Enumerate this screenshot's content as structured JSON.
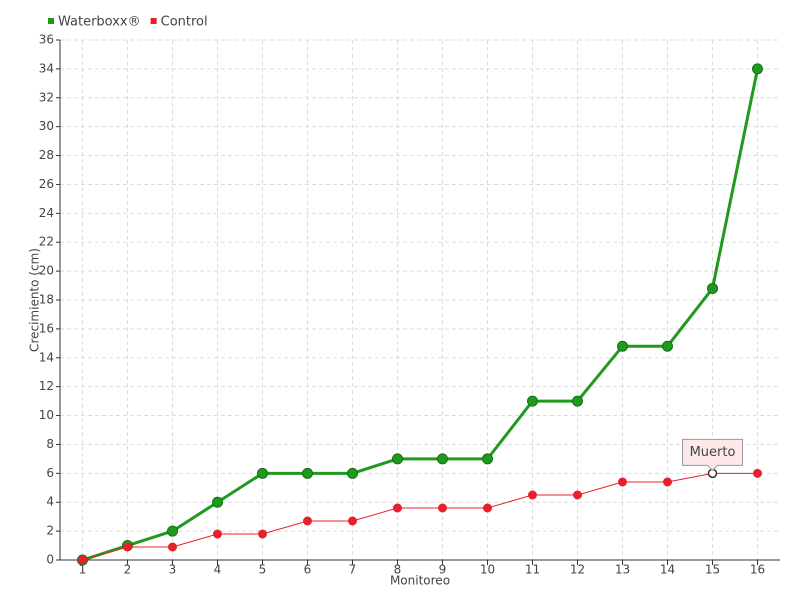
{
  "chart_data": {
    "type": "line",
    "xlabel": "Monitoreo",
    "ylabel": "Crecimiento (cm)",
    "categories": [
      "1",
      "2",
      "3",
      "4",
      "5",
      "6",
      "7",
      "8",
      "9",
      "10",
      "11",
      "12",
      "13",
      "14",
      "15",
      "16"
    ],
    "series": [
      {
        "name": "Waterboxx®",
        "color": "#1f9a1f",
        "values": [
          0,
          1,
          2,
          4,
          6,
          6,
          6,
          7,
          7,
          7,
          11,
          11,
          14.8,
          14.8,
          18.8,
          34
        ]
      },
      {
        "name": "Control",
        "color": "#e8202c",
        "values": [
          0,
          0.9,
          0.9,
          1.8,
          1.8,
          2.7,
          2.7,
          3.6,
          3.6,
          3.6,
          4.5,
          4.5,
          5.4,
          5.4,
          6,
          6
        ]
      }
    ],
    "annotations": [
      {
        "text": "Muerto",
        "series": "Control",
        "category": "15"
      }
    ],
    "ylim": [
      0,
      36
    ],
    "yticks": [
      0,
      2,
      4,
      6,
      8,
      10,
      12,
      14,
      16,
      18,
      20,
      22,
      24,
      26,
      28,
      30,
      32,
      34,
      36
    ],
    "grid": true,
    "legend": "top-left"
  }
}
